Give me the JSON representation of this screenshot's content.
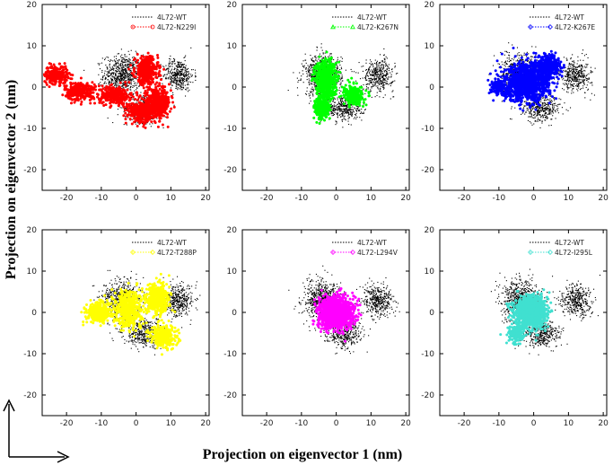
{
  "figure": {
    "xlabel": "Projection on eigenvector 1 (nm)",
    "ylabel": "Projection on eigenvector 2 (nm)"
  },
  "colors": {
    "wt": "#000000",
    "N229I": "#ff0000",
    "K267N": "#00ff00",
    "K267E": "#0000ff",
    "T288P": "#ffff00",
    "L294V": "#ff00ff",
    "I295L": "#40e0d0"
  },
  "chart_data": [
    {
      "type": "scatter",
      "panel": "top-left",
      "xlim": [
        -27,
        21
      ],
      "ylim": [
        -25,
        20
      ],
      "xticks": [
        -20,
        -10,
        0,
        10,
        20
      ],
      "yticks": [
        -20,
        -10,
        0,
        10,
        20
      ],
      "series": [
        {
          "name": "4L72-WT",
          "color": "#000000",
          "marker": "dot",
          "clusters": [
            {
              "center": [
                -4,
                3
              ],
              "spread": [
                5,
                4.5
              ],
              "n": 700
            },
            {
              "center": [
                12,
                3
              ],
              "spread": [
                4,
                3.5
              ],
              "n": 400
            },
            {
              "center": [
                2,
                -5
              ],
              "spread": [
                5,
                3
              ],
              "n": 400
            }
          ]
        },
        {
          "name": "4L72-N229I",
          "color": "#ff0000",
          "marker": "circle",
          "clusters": [
            {
              "center": [
                -23,
                3
              ],
              "spread": [
                3,
                2
              ],
              "n": 250
            },
            {
              "center": [
                -16,
                -1
              ],
              "spread": [
                4,
                2
              ],
              "n": 300
            },
            {
              "center": [
                -6,
                -2
              ],
              "spread": [
                4,
                2
              ],
              "n": 300
            },
            {
              "center": [
                3,
                4
              ],
              "spread": [
                3,
                3
              ],
              "n": 400
            },
            {
              "center": [
                6,
                -4
              ],
              "spread": [
                3.5,
                3
              ],
              "n": 500
            },
            {
              "center": [
                1,
                -6
              ],
              "spread": [
                3,
                2
              ],
              "n": 300
            }
          ]
        }
      ]
    },
    {
      "type": "scatter",
      "panel": "top-middle",
      "xlim": [
        -27,
        21
      ],
      "ylim": [
        -25,
        20
      ],
      "xticks": [
        -20,
        -10,
        0,
        10,
        20
      ],
      "yticks": [
        -20,
        -10,
        0,
        10,
        20
      ],
      "series": [
        {
          "name": "4L72-WT",
          "color": "#000000",
          "marker": "dot",
          "clusters": [
            {
              "center": [
                -4,
                3
              ],
              "spread": [
                5,
                4.5
              ],
              "n": 700
            },
            {
              "center": [
                12,
                3
              ],
              "spread": [
                4,
                3.5
              ],
              "n": 400
            },
            {
              "center": [
                2,
                -5
              ],
              "spread": [
                5,
                3
              ],
              "n": 400
            }
          ]
        },
        {
          "name": "4L72-K267N",
          "color": "#00ff00",
          "marker": "triangle",
          "clusters": [
            {
              "center": [
                -3,
                2
              ],
              "spread": [
                2.5,
                4
              ],
              "n": 700
            },
            {
              "center": [
                -4,
                -5
              ],
              "spread": [
                2,
                2.5
              ],
              "n": 300
            },
            {
              "center": [
                5,
                -2
              ],
              "spread": [
                2.5,
                2
              ],
              "n": 300
            }
          ]
        }
      ]
    },
    {
      "type": "scatter",
      "panel": "top-right",
      "xlim": [
        -27,
        21
      ],
      "ylim": [
        -25,
        20
      ],
      "xticks": [
        -20,
        -10,
        0,
        10,
        20
      ],
      "yticks": [
        -20,
        -10,
        0,
        10,
        20
      ],
      "series": [
        {
          "name": "4L72-WT",
          "color": "#000000",
          "marker": "dot",
          "clusters": [
            {
              "center": [
                -4,
                3
              ],
              "spread": [
                5,
                4.5
              ],
              "n": 700
            },
            {
              "center": [
                12,
                3
              ],
              "spread": [
                4,
                3.5
              ],
              "n": 400
            },
            {
              "center": [
                2,
                -5
              ],
              "spread": [
                5,
                3
              ],
              "n": 400
            }
          ]
        },
        {
          "name": "4L72-K267E",
          "color": "#0000ff",
          "marker": "diamond",
          "clusters": [
            {
              "center": [
                -2,
                1
              ],
              "spread": [
                6,
                4
              ],
              "n": 1100
            },
            {
              "center": [
                4,
                5
              ],
              "spread": [
                3,
                2.5
              ],
              "n": 400
            },
            {
              "center": [
                -10,
                0
              ],
              "spread": [
                2,
                1.5
              ],
              "n": 150
            }
          ]
        }
      ]
    },
    {
      "type": "scatter",
      "panel": "bottom-left",
      "xlim": [
        -27,
        21
      ],
      "ylim": [
        -25,
        20
      ],
      "xticks": [
        -20,
        -10,
        0,
        10,
        20
      ],
      "yticks": [
        -20,
        -10,
        0,
        10,
        20
      ],
      "series": [
        {
          "name": "4L72-WT",
          "color": "#000000",
          "marker": "dot",
          "clusters": [
            {
              "center": [
                -4,
                3
              ],
              "spread": [
                5,
                4.5
              ],
              "n": 700
            },
            {
              "center": [
                12,
                3
              ],
              "spread": [
                4,
                3.5
              ],
              "n": 400
            },
            {
              "center": [
                2,
                -5
              ],
              "spread": [
                5,
                3
              ],
              "n": 400
            }
          ]
        },
        {
          "name": "4L72-T288P",
          "color": "#ffff00",
          "marker": "diamond",
          "clusters": [
            {
              "center": [
                -11,
                0
              ],
              "spread": [
                3,
                2
              ],
              "n": 400
            },
            {
              "center": [
                -2,
                1
              ],
              "spread": [
                3.5,
                4
              ],
              "n": 500
            },
            {
              "center": [
                6,
                3
              ],
              "spread": [
                3,
                3.5
              ],
              "n": 500
            },
            {
              "center": [
                8,
                -6
              ],
              "spread": [
                3.5,
                2.5
              ],
              "n": 300
            }
          ]
        }
      ]
    },
    {
      "type": "scatter",
      "panel": "bottom-middle",
      "xlim": [
        -27,
        21
      ],
      "ylim": [
        -25,
        20
      ],
      "xticks": [
        -20,
        -10,
        0,
        10,
        20
      ],
      "yticks": [
        -20,
        -10,
        0,
        10,
        20
      ],
      "series": [
        {
          "name": "4L72-WT",
          "color": "#000000",
          "marker": "dot",
          "clusters": [
            {
              "center": [
                -4,
                3
              ],
              "spread": [
                5,
                4.5
              ],
              "n": 700
            },
            {
              "center": [
                12,
                3
              ],
              "spread": [
                4,
                3.5
              ],
              "n": 400
            },
            {
              "center": [
                2,
                -5
              ],
              "spread": [
                5,
                3
              ],
              "n": 400
            }
          ]
        },
        {
          "name": "4L72-L294V",
          "color": "#ff00ff",
          "marker": "diamond",
          "clusters": [
            {
              "center": [
                0,
                0
              ],
              "spread": [
                4.5,
                3.5
              ],
              "n": 1200
            }
          ]
        }
      ]
    },
    {
      "type": "scatter",
      "panel": "bottom-right",
      "xlim": [
        -27,
        21
      ],
      "ylim": [
        -25,
        20
      ],
      "xticks": [
        -20,
        -10,
        0,
        10,
        20
      ],
      "yticks": [
        -20,
        -10,
        0,
        10,
        20
      ],
      "series": [
        {
          "name": "4L72-WT",
          "color": "#000000",
          "marker": "dot",
          "clusters": [
            {
              "center": [
                -4,
                3
              ],
              "spread": [
                5,
                4.5
              ],
              "n": 700
            },
            {
              "center": [
                12,
                3
              ],
              "spread": [
                4,
                3.5
              ],
              "n": 400
            },
            {
              "center": [
                2,
                -5
              ],
              "spread": [
                5,
                3
              ],
              "n": 400
            }
          ]
        },
        {
          "name": "4L72-I295L",
          "color": "#40e0d0",
          "marker": "diamond",
          "clusters": [
            {
              "center": [
                -1,
                0
              ],
              "spread": [
                4,
                3.5
              ],
              "n": 1100
            },
            {
              "center": [
                -5,
                -5
              ],
              "spread": [
                2,
                2
              ],
              "n": 200
            }
          ]
        }
      ]
    }
  ]
}
